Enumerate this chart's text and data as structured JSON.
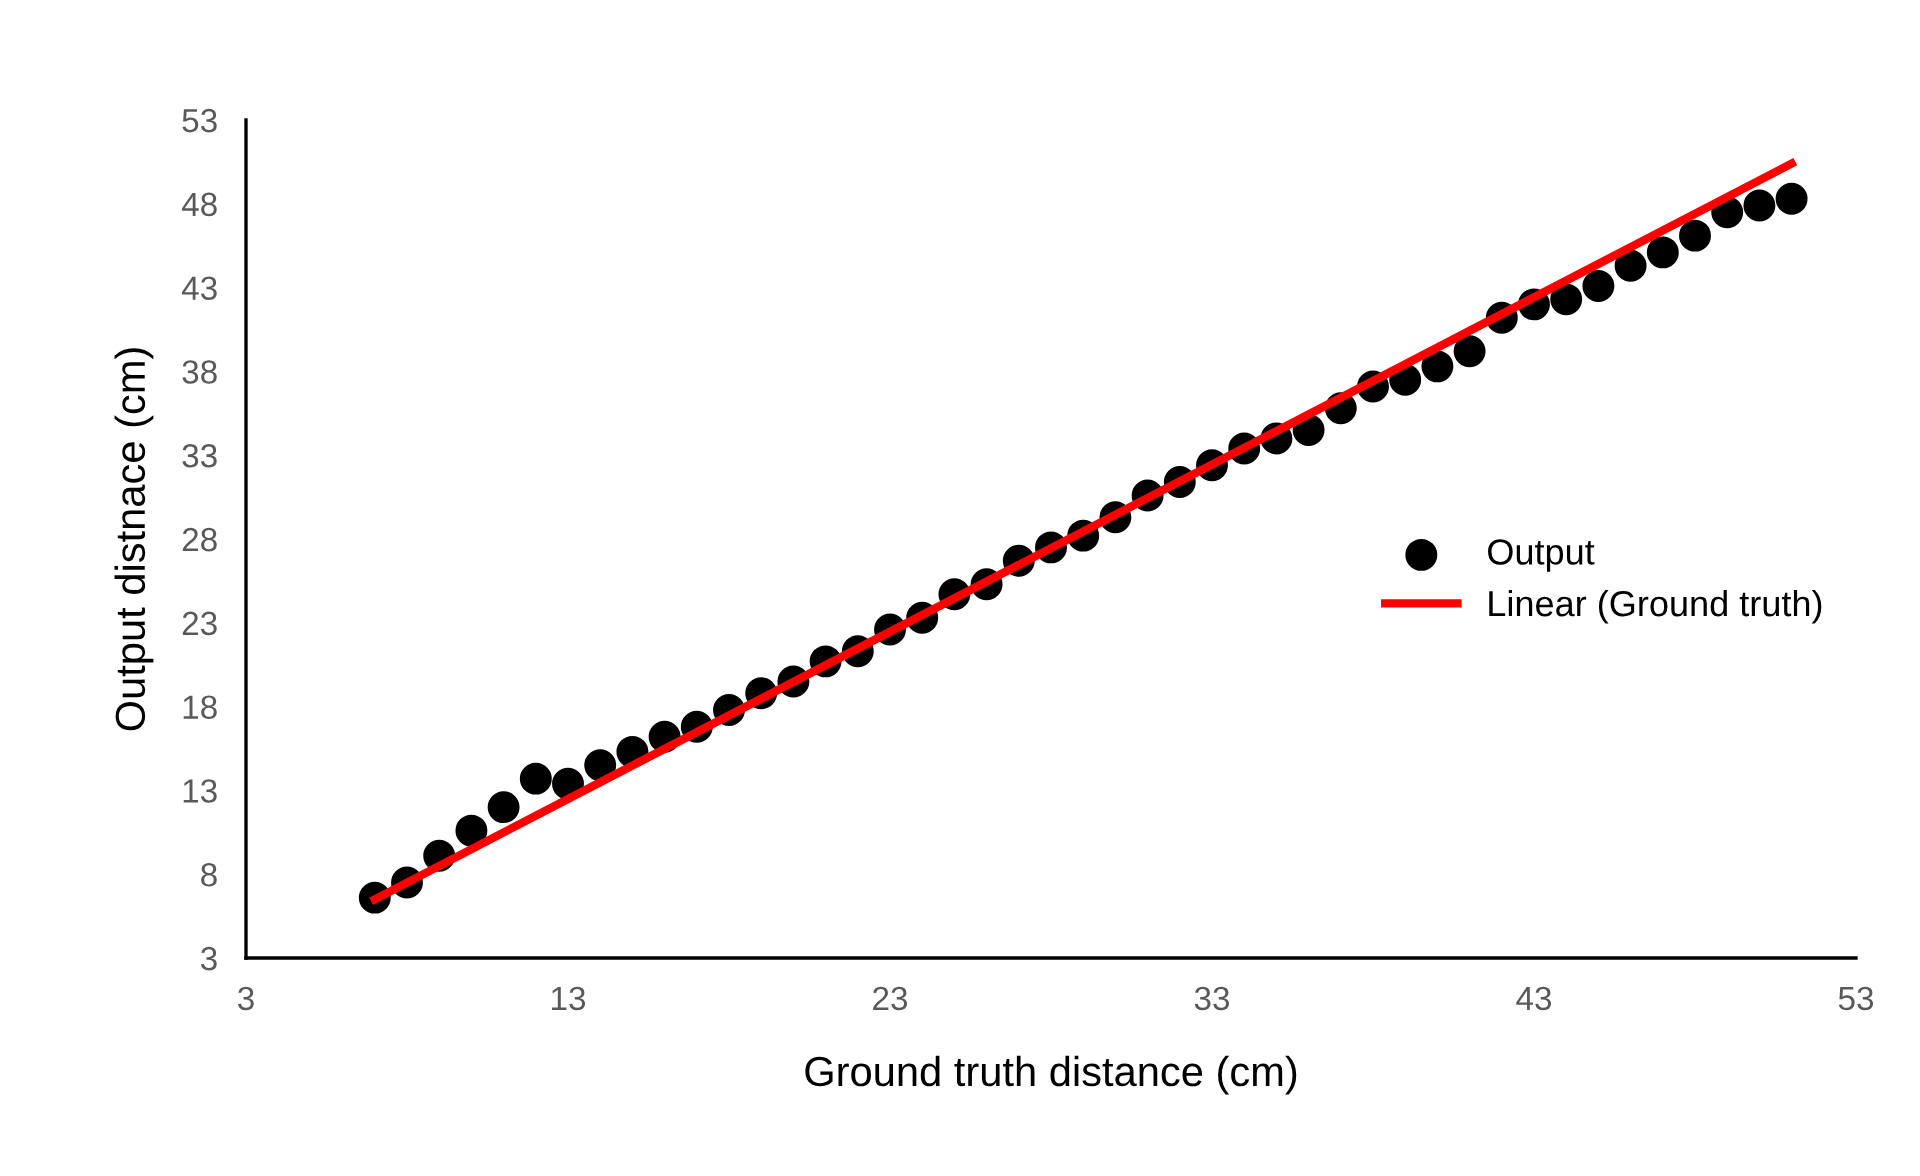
{
  "chart_data": {
    "type": "scatter",
    "xlabel": "Ground truth distance (cm)",
    "ylabel": "Output distnace (cm)",
    "xlim": [
      3,
      53
    ],
    "xticks": [
      3,
      13,
      23,
      33,
      43,
      53
    ],
    "ylim": [
      3,
      53
    ],
    "yticks": [
      3,
      8,
      13,
      18,
      23,
      28,
      33,
      38,
      43,
      48,
      53
    ],
    "grid": false,
    "legend": "right",
    "marker": "circle",
    "series": [
      {
        "name": "Output",
        "color": "#000000",
        "x": [
          7,
          8,
          9,
          10,
          11,
          12,
          13,
          14,
          15,
          16,
          17,
          18,
          19,
          20,
          21,
          22,
          23,
          24,
          25,
          26,
          27,
          28,
          29,
          30,
          31,
          32,
          33,
          34,
          35,
          36,
          37,
          38,
          39,
          40,
          41,
          42,
          43,
          44,
          45,
          46,
          47,
          48,
          49,
          50,
          51
        ],
        "values": [
          6.6,
          7.5,
          9.1,
          10.6,
          12.0,
          13.7,
          13.4,
          14.5,
          15.3,
          16.2,
          16.8,
          17.8,
          18.8,
          19.5,
          20.7,
          21.3,
          22.6,
          23.3,
          24.7,
          25.3,
          26.7,
          27.5,
          28.2,
          29.3,
          30.6,
          31.4,
          32.4,
          33.4,
          34.0,
          34.5,
          35.8,
          37.1,
          37.5,
          38.3,
          39.2,
          41.2,
          42.0,
          42.3,
          43.1,
          44.3,
          45.1,
          46.1,
          47.5,
          47.9,
          48.3
        ]
      },
      {
        "name": "Linear (Ground truth)",
        "type": "line",
        "color": "#ff0000",
        "x": [
          7,
          51
        ],
        "values": [
          6.5,
          50.4
        ],
        "marker": "none",
        "line_style": "solid"
      }
    ]
  }
}
